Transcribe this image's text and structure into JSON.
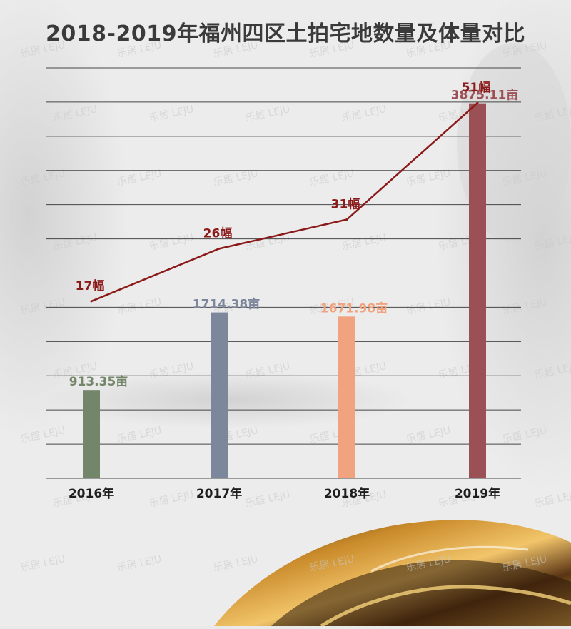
{
  "chart_data": {
    "type": "bar",
    "title": "2018-2019年福州四区土拍宅地数量及体量对比",
    "categories": [
      "2016年",
      "2017年",
      "2018年",
      "2019年"
    ],
    "series": [
      {
        "values": [
          913.35,
          1714.38,
          1671.98,
          3875.11
        ],
        "labels": [
          "913.35亩",
          "1714.38亩",
          "1671.98亩",
          "3875.11亩"
        ],
        "colors": [
          "#74866a",
          "#7c879c",
          "#f0a37e",
          "#9b5056"
        ]
      },
      {
        "type": "line",
        "values": [
          17,
          26,
          31,
          51
        ],
        "labels": [
          "17幅",
          "26幅",
          "31幅",
          "51幅"
        ],
        "color": "#8b1a1a"
      }
    ],
    "grid": true,
    "watermark": "乐居 LEJU"
  }
}
